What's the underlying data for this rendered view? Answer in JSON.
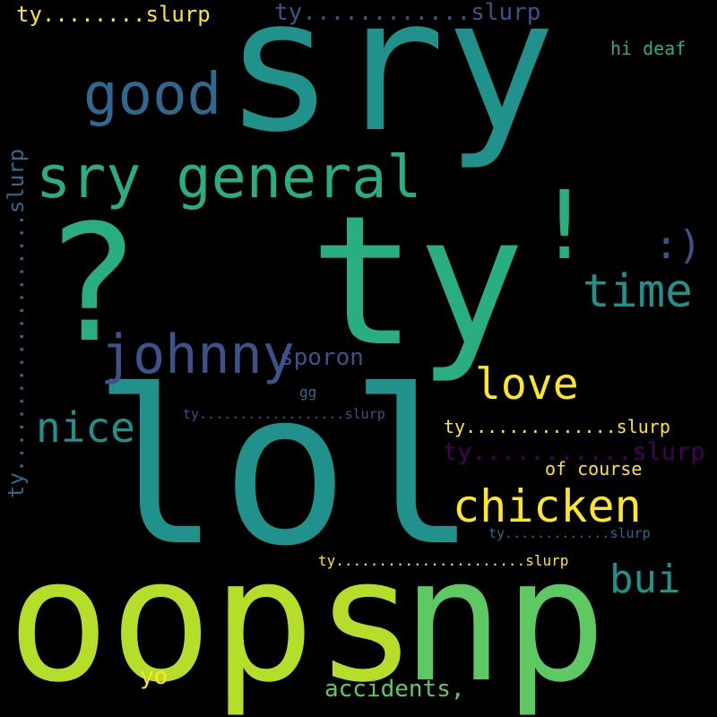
{
  "background": "#000000",
  "palette": {
    "dark_purple": "#440154",
    "indigo": "#3b528b",
    "slate_blue": "#31688e",
    "teal": "#21918c",
    "sea_green": "#28ae80",
    "green": "#5ec962",
    "lime": "#b5de2b",
    "yellow": "#fde725"
  },
  "words": {
    "sry": "sry",
    "lol": "lol",
    "ty_big": "ty",
    "question": "?",
    "oops": "oops",
    "np": "np",
    "exclaim": "!",
    "sry_general": "sry general",
    "good": "good",
    "johnny": "johnny",
    "time": "time",
    "chicken": "chicken",
    "love": "love",
    "nice": "nice",
    "bui": "bui",
    "smiley": ":)",
    "sporon": "sporon",
    "gg": "gg",
    "hi_deaf": "hi deaf",
    "of_course": "of course",
    "yo": "yo",
    "accidents": "accidents,",
    "ty_slurp_top_left": "ty........slurp",
    "ty_slurp_top_mid": "ty............slurp",
    "ty_slurp_vertical": "ty....................slurp",
    "ty_slurp_center": "ty..................slurp",
    "ty_slurp_right_1": "ty..............slurp",
    "ty_slurp_right_2": "ty...........slurp",
    "ty_slurp_right_3": "ty.............slurp",
    "ty_slurp_bottom": "ty......................slurp"
  }
}
